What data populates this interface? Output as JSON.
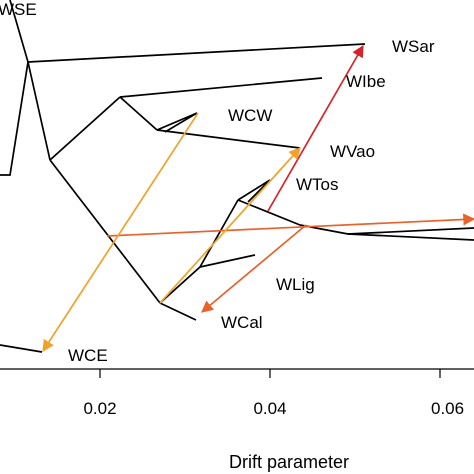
{
  "axis": {
    "title": "Drift parameter",
    "ticks": [
      "0.02",
      "0.04",
      "0.06"
    ]
  },
  "labels": {
    "wse": "WSE",
    "wsar": "WSar",
    "wibe": "WIbe",
    "wcw": "WCW",
    "wvao": "WVao",
    "wtos": "WTos",
    "wlig": "WLig",
    "wcal": "WCal",
    "wce": "WCE"
  },
  "colors": {
    "branch": "#000000",
    "migration_strong": "#d8222a",
    "migration_medium": "#e8622c",
    "migration_weak": "#f2a22a"
  }
}
